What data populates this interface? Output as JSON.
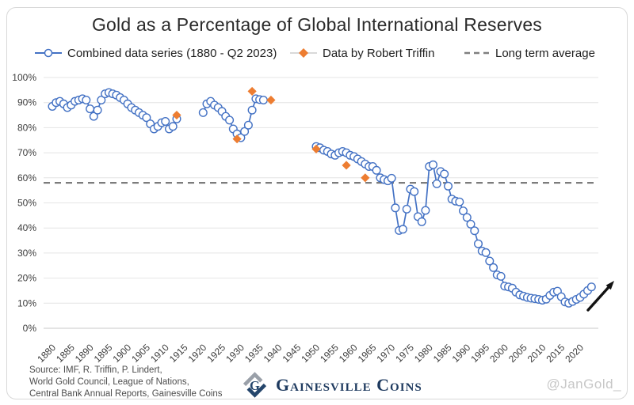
{
  "title": "Gold as a Percentage of Global International Reserves",
  "legend": [
    {
      "label": "Combined data series (1880 - Q2 2023)",
      "marker": "line-circle",
      "color": "#4472C4"
    },
    {
      "label": "Data by Robert Triffin",
      "marker": "diamond",
      "color": "#ED7D31"
    },
    {
      "label": "Long term average",
      "marker": "dashes",
      "color": "#7F7F7F"
    }
  ],
  "chart_data": {
    "type": "line",
    "title": "Gold as a Percentage of Global International Reserves",
    "xlabel": "",
    "ylabel": "",
    "grid": "horizontal",
    "legend_position": "top",
    "x_axis": {
      "range": [
        1880,
        2023
      ],
      "ticks": [
        1880,
        1885,
        1890,
        1895,
        1900,
        1905,
        1910,
        1915,
        1920,
        1925,
        1930,
        1935,
        1940,
        1945,
        1950,
        1955,
        1960,
        1965,
        1970,
        1975,
        1980,
        1985,
        1990,
        1995,
        2000,
        2005,
        2010,
        2015,
        2020
      ]
    },
    "y_axis": {
      "range": [
        0,
        100
      ],
      "format": "percent",
      "ticks": [
        0,
        10,
        20,
        30,
        40,
        50,
        60,
        70,
        80,
        90,
        100
      ]
    },
    "long_term_average": 58,
    "series": [
      {
        "name": "Combined data series (1880 - Q2 2023)",
        "color": "#4472C4",
        "marker": "open-circle",
        "segments": [
          {
            "start_year": 1880,
            "values": [
              88.5,
              90,
              90.5,
              89.5,
              88,
              89,
              90.5,
              91,
              91.5,
              91,
              87.5,
              84.5,
              87,
              91,
              93.5,
              94,
              93.5,
              93,
              92,
              91,
              89.5,
              88,
              87,
              86,
              85,
              84,
              81.5,
              79.5,
              80.5,
              82,
              82.5,
              79.5,
              80.5,
              83.5
            ]
          },
          {
            "start_year": 1920,
            "values": [
              86,
              89.5,
              90.5,
              89,
              88,
              86.5,
              84.5,
              83,
              79.5,
              77.5,
              76,
              78.5,
              81,
              87,
              91.5,
              91.2,
              91
            ]
          },
          {
            "start_year": 1950,
            "values": [
              72.5,
              72,
              71,
              70.5,
              69.5,
              69,
              70,
              70.5,
              70,
              69,
              68.5,
              67.5,
              66.5,
              65.5,
              64.5,
              64.5,
              63,
              60,
              59.3,
              58.8,
              59.8,
              48,
              39,
              39.5,
              47.5,
              55.5,
              54.5,
              44.5,
              42.5,
              47,
              64.5,
              65.2,
              57.6,
              62.5,
              61.5,
              56.7,
              51.5,
              50.7,
              50.4,
              46.8,
              44.2,
              41.5,
              38.9,
              33.7,
              30.8,
              30.2,
              26.8,
              24.2,
              21.3,
              20.7,
              16.8,
              16.5,
              16,
              14.4,
              13.3,
              12.8,
              12.3,
              12,
              11.8,
              11.5,
              11.2,
              11.6,
              13.1,
              14.4,
              14.8,
              12.6,
              10.5,
              10,
              10.7,
              11.5,
              12.3,
              13.6,
              15,
              16.5
            ]
          }
        ]
      },
      {
        "name": "Data by Robert Triffin",
        "color": "#ED7D31",
        "marker": "diamond",
        "points": [
          [
            1913,
            85
          ],
          [
            1929,
            75.5
          ],
          [
            1933,
            94.5
          ],
          [
            1938,
            91
          ],
          [
            1950,
            71.5
          ],
          [
            1958,
            65
          ],
          [
            1963,
            60
          ]
        ]
      },
      {
        "name": "Long term average",
        "color": "#7F7F7F",
        "style": "dashed",
        "value": 58
      }
    ],
    "annotations": [
      {
        "type": "arrow",
        "direction": "up-right",
        "near": "series end (Q2 2023)"
      }
    ]
  },
  "footer": {
    "source_lines": [
      "Source: IMF, R. Triffin, P. Lindert,",
      "World Gold Council, League of Nations,",
      "Central Bank Annual Reports, Gainesville Coins"
    ],
    "logo_text": "Gainesville Coins",
    "watermark": "@JanGold_"
  },
  "colors": {
    "series_blue": "#4472C4",
    "triffin_orange": "#ED7D31",
    "average_gray": "#6e6e6e",
    "gridline": "#e4e4e4",
    "logo_navy": "#24456b",
    "logo_gray": "#9aa0a9",
    "arrow_black": "#121212"
  }
}
